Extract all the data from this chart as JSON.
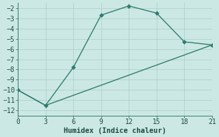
{
  "xlabel": "Humidex (Indice chaleur)",
  "line1_x": [
    0,
    3,
    6,
    9,
    12,
    15,
    18,
    21
  ],
  "line1_y": [
    -10,
    -11.5,
    -7.8,
    -2.7,
    -1.8,
    -2.5,
    -5.3,
    -5.6
  ],
  "line2_x": [
    0,
    3,
    21
  ],
  "line2_y": [
    -10,
    -11.5,
    -5.6
  ],
  "line_color": "#2e7d6e",
  "bg_color": "#cce8e4",
  "grid_color": "#b0d0cc",
  "xlim": [
    0,
    21
  ],
  "ylim": [
    -12.5,
    -1.5
  ],
  "xticks": [
    0,
    3,
    6,
    9,
    12,
    15,
    18,
    21
  ],
  "yticks": [
    -12,
    -11,
    -10,
    -9,
    -8,
    -7,
    -6,
    -5,
    -4,
    -3,
    -2
  ],
  "marker": "D",
  "marker_size": 3,
  "line_width": 1.0,
  "tick_fontsize": 7,
  "xlabel_fontsize": 7.5
}
